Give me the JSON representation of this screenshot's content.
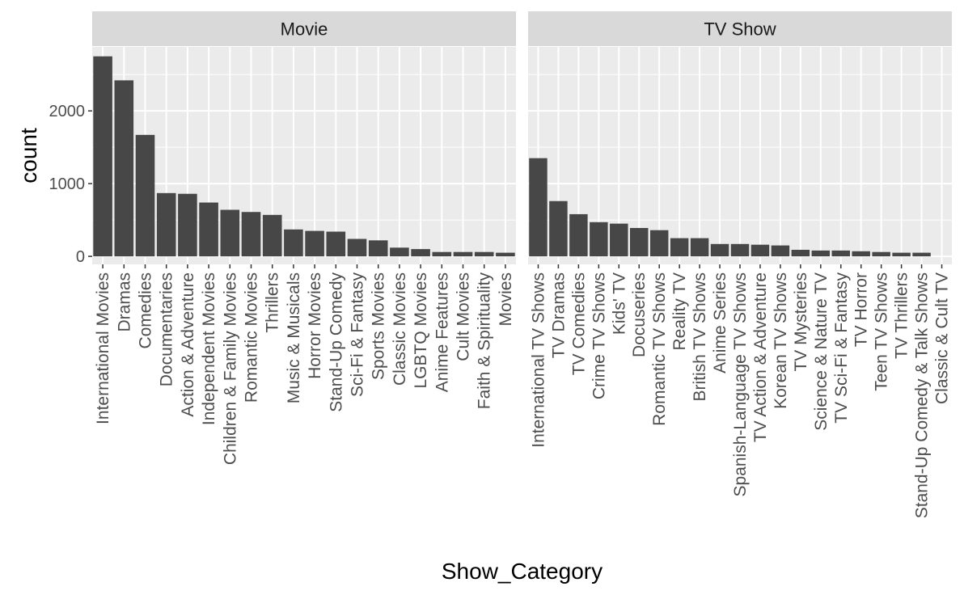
{
  "chart_data": {
    "type": "bar",
    "xlabel": "Show_Category",
    "ylabel": "count",
    "ylim": [
      -110,
      2880
    ],
    "y_ticks": [
      0,
      1000,
      2000
    ],
    "y_tick_labels": [
      "0",
      "1000",
      "2000"
    ],
    "grid": true,
    "colors": {
      "bar": "#474747",
      "panel_background": "#ebebeb",
      "grid": "#ffffff",
      "strip_background": "#d9d9d9"
    },
    "panels": [
      {
        "strip": "Movie",
        "categories": [
          "International Movies",
          "Dramas",
          "Comedies",
          "Documentaries",
          "Action & Adventure",
          "Independent Movies",
          "Children & Family Movies",
          "Romantic Movies",
          "Thrillers",
          "Music & Musicals",
          "Horror Movies",
          "Stand-Up Comedy",
          "Sci-Fi & Fantasy",
          "Sports Movies",
          "Classic Movies",
          "LGBTQ Movies",
          "Anime Features",
          "Cult Movies",
          "Faith & Spirituality",
          "Movies"
        ],
        "values": [
          2750,
          2420,
          1670,
          870,
          860,
          740,
          640,
          610,
          570,
          370,
          350,
          340,
          240,
          220,
          120,
          100,
          60,
          60,
          60,
          50
        ]
      },
      {
        "strip": "TV Show",
        "categories": [
          "International TV Shows",
          "TV Dramas",
          "TV Comedies",
          "Crime TV Shows",
          "Kids' TV",
          "Docuseries",
          "Romantic TV Shows",
          "Reality TV",
          "British TV Shows",
          "Anime Series",
          "Spanish-Language TV Shows",
          "TV Action & Adventure",
          "Korean TV Shows",
          "TV Mysteries",
          "Science & Nature TV",
          "TV Sci-Fi & Fantasy",
          "TV Horror",
          "Teen TV Shows",
          "TV Thrillers",
          "Stand-Up Comedy & Talk Shows",
          "Classic & Cult TV"
        ],
        "values": [
          1350,
          760,
          580,
          470,
          450,
          390,
          360,
          250,
          250,
          170,
          170,
          160,
          150,
          90,
          80,
          80,
          70,
          60,
          50,
          50,
          0
        ]
      }
    ]
  }
}
